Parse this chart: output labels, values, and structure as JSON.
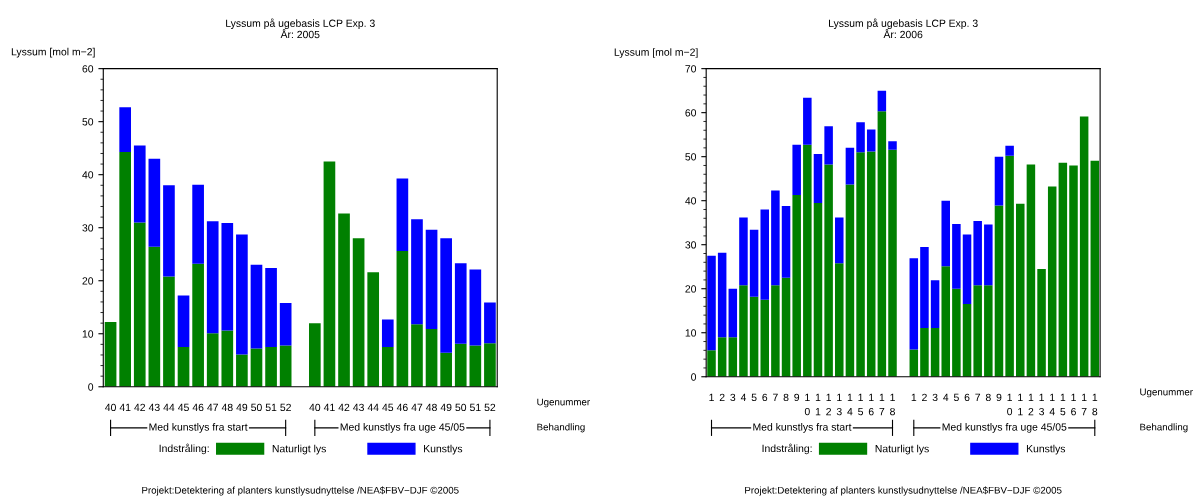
{
  "chart_data": [
    {
      "type": "bar",
      "stacked": true,
      "title": "Lyssum på ugebasis LCP Exp. 3\nÅr: 2005",
      "ylabel": "Lyssum [mol m−2]",
      "xlabel": "Ugenummer",
      "legend_title": "Indstråling:",
      "legend": "bottom",
      "grid": false,
      "categories": [
        "40",
        "41",
        "42",
        "43",
        "44",
        "45",
        "46",
        "47",
        "48",
        "49",
        "50",
        "51",
        "52",
        null,
        "40",
        "41",
        "42",
        "43",
        "44",
        "45",
        "46",
        "47",
        "48",
        "49",
        "50",
        "51",
        "52"
      ],
      "series": [
        {
          "name": "Naturligt lys",
          "color": "#008000",
          "values": [
            12.2,
            44.3,
            31.0,
            26.4,
            20.8,
            7.5,
            23.2,
            10.1,
            10.6,
            6.1,
            7.2,
            7.5,
            7.8,
            null,
            12.0,
            42.5,
            32.7,
            28.0,
            21.6,
            7.5,
            25.6,
            11.8,
            10.9,
            6.4,
            8.1,
            7.8,
            8.2
          ]
        },
        {
          "name": "Kunstlys",
          "color": "#0000ff",
          "values": [
            null,
            8.4,
            14.5,
            16.6,
            17.2,
            9.7,
            14.9,
            21.1,
            20.3,
            22.6,
            15.8,
            14.9,
            8.0,
            null,
            null,
            null,
            null,
            null,
            null,
            5.2,
            13.7,
            19.8,
            18.7,
            21.6,
            15.2,
            14.3,
            7.7
          ]
        }
      ],
      "ylim": [
        0,
        60
      ],
      "yticks": [
        0,
        10,
        20,
        30,
        40,
        50,
        60
      ],
      "annotations": [
        "Med kunstlys fra start",
        "Med kunstlys fra uge 45/05",
        "Behandling",
        "Projekt:Detektering af planters kunstlysudnyttelse /NEA$FBV−DJF ©2005"
      ]
    },
    {
      "type": "bar",
      "stacked": true,
      "title": "Lyssum på ugebasis LCP Exp. 3\nÅr: 2006",
      "ylabel": "Lyssum [mol m−2]",
      "xlabel": "Ugenummer",
      "legend_title": "Indstråling:",
      "legend": "bottom",
      "grid": false,
      "categories": [
        "1",
        "2",
        "3",
        "4",
        "5",
        "6",
        "7",
        "8",
        "9",
        "1\n0",
        "1\n1",
        "1\n2",
        "1\n3",
        "1\n4",
        "1\n5",
        "1\n6",
        "1\n7",
        "1\n8",
        null,
        "1",
        "2",
        "3",
        "4",
        "5",
        "6",
        "7",
        "8",
        "9",
        "1\n0",
        "1\n1",
        "1\n2",
        "1\n3",
        "1\n4",
        "1\n5",
        "1\n6",
        "1\n7",
        "1\n8"
      ],
      "series": [
        {
          "name": "Naturligt lys",
          "color": "#008000",
          "values": [
            6.0,
            9.0,
            9.0,
            20.8,
            18.2,
            17.5,
            20.8,
            22.5,
            41.3,
            52.7,
            39.5,
            48.2,
            25.8,
            43.7,
            51.0,
            51.2,
            60.3,
            51.6,
            null,
            6.2,
            11.1,
            11.1,
            25.1,
            20.0,
            16.5,
            20.8,
            20.8,
            38.9,
            50.2,
            39.3,
            48.2,
            24.5,
            43.2,
            48.6,
            48.0,
            59.1,
            49.1
          ]
        },
        {
          "name": "Kunstlys",
          "color": "#0000ff",
          "values": [
            21.5,
            19.2,
            11.0,
            15.4,
            15.2,
            20.5,
            21.5,
            16.3,
            11.4,
            10.7,
            11.1,
            8.7,
            10.4,
            8.3,
            6.8,
            5.0,
            4.7,
            1.9,
            null,
            20.7,
            18.4,
            10.8,
            14.9,
            14.7,
            15.8,
            14.6,
            13.8,
            11.1,
            2.3,
            null,
            null,
            null,
            null,
            null,
            null,
            null,
            null
          ]
        }
      ],
      "ylim": [
        0,
        70
      ],
      "yticks": [
        0,
        10,
        20,
        30,
        40,
        50,
        60,
        70
      ],
      "annotations": [
        "Med kunstlys fra start",
        "Med kunstlys fra uge 45/05",
        "Behandling",
        "Projekt:Detektering af planters kunstlysudnyttelse /NEA$FBV−DJF ©2005"
      ]
    }
  ]
}
